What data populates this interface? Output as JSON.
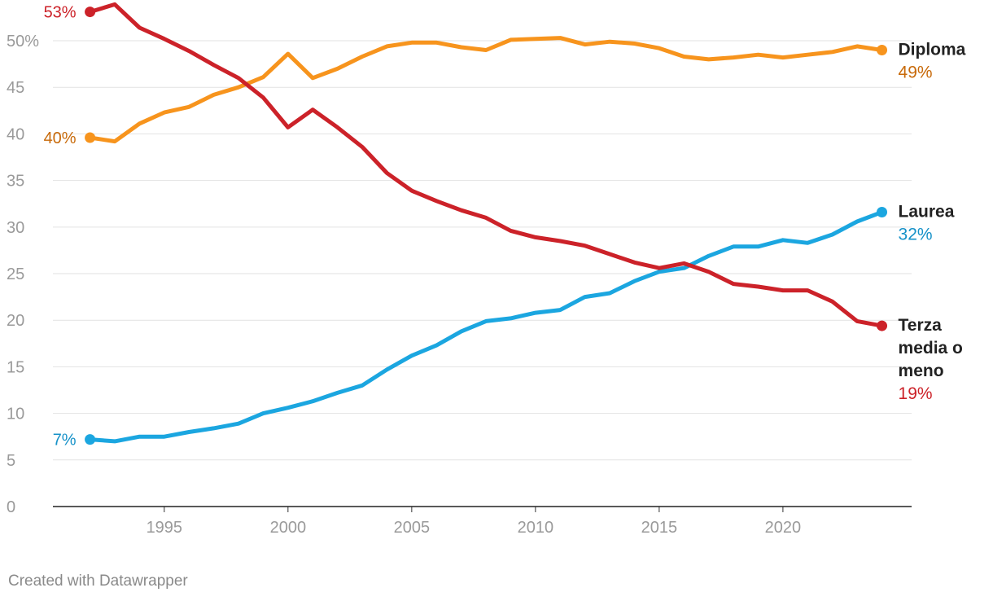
{
  "chart_data": {
    "type": "line",
    "title": "",
    "xlabel": "",
    "ylabel": "",
    "xlim": [
      1990.5,
      2025.2
    ],
    "ylim": [
      0,
      53.5
    ],
    "x_ticks": [
      {
        "value": 1995,
        "label": "1995"
      },
      {
        "value": 2000,
        "label": "2000"
      },
      {
        "value": 2005,
        "label": "2005"
      },
      {
        "value": 2010,
        "label": "2010"
      },
      {
        "value": 2015,
        "label": "2015"
      },
      {
        "value": 2020,
        "label": "2020"
      }
    ],
    "y_ticks": [
      {
        "value": 0,
        "label": "0"
      },
      {
        "value": 5,
        "label": "5"
      },
      {
        "value": 10,
        "label": "10"
      },
      {
        "value": 15,
        "label": "15"
      },
      {
        "value": 20,
        "label": "20"
      },
      {
        "value": 25,
        "label": "25"
      },
      {
        "value": 30,
        "label": "30"
      },
      {
        "value": 35,
        "label": "35"
      },
      {
        "value": 40,
        "label": "40"
      },
      {
        "value": 45,
        "label": "45"
      },
      {
        "value": 50,
        "label": "50%"
      }
    ],
    "x": [
      1992,
      1993,
      1994,
      1995,
      1996,
      1997,
      1998,
      1999,
      2000,
      2001,
      2002,
      2003,
      2004,
      2005,
      2006,
      2007,
      2008,
      2009,
      2010,
      2011,
      2012,
      2013,
      2014,
      2015,
      2016,
      2017,
      2018,
      2019,
      2020,
      2021,
      2022,
      2023,
      2024
    ],
    "series": [
      {
        "name": "Diploma",
        "end_label": "49%",
        "start_label": "40%",
        "color": "#f7941d",
        "label_color": "#c86a0a",
        "values": [
          39.6,
          39.2,
          41.1,
          42.3,
          42.9,
          44.2,
          45.0,
          46.1,
          48.6,
          46.0,
          47.0,
          48.3,
          49.4,
          49.8,
          49.8,
          49.3,
          49.0,
          50.1,
          50.2,
          50.3,
          49.6,
          49.9,
          49.7,
          49.2,
          48.3,
          48.0,
          48.2,
          48.5,
          48.2,
          48.5,
          48.8,
          49.4,
          49.0
        ]
      },
      {
        "name": "Laurea",
        "end_label": "32%",
        "start_label": "7%",
        "color": "#1ba6e0",
        "label_color": "#1591c8",
        "values": [
          7.2,
          7.0,
          7.5,
          7.5,
          8.0,
          8.4,
          8.9,
          10.0,
          10.6,
          11.3,
          12.2,
          13.0,
          14.7,
          16.2,
          17.3,
          18.8,
          19.9,
          20.2,
          20.8,
          21.1,
          22.5,
          22.9,
          24.2,
          25.2,
          25.6,
          26.9,
          27.9,
          27.9,
          28.6,
          28.3,
          29.2,
          30.6,
          31.6
        ]
      },
      {
        "name": "Terza media o meno",
        "name_lines": [
          "Terza",
          "media o",
          "meno"
        ],
        "end_label": "19%",
        "start_label": "53%",
        "color": "#cc2229",
        "label_color": "#cc2229",
        "values": [
          53.1,
          53.9,
          51.4,
          50.2,
          48.9,
          47.4,
          46.0,
          43.9,
          40.7,
          42.6,
          40.7,
          38.6,
          35.8,
          33.9,
          32.8,
          31.8,
          31.0,
          29.6,
          28.9,
          28.5,
          28.0,
          27.1,
          26.2,
          25.6,
          26.1,
          25.2,
          23.9,
          23.6,
          23.2,
          23.2,
          22.0,
          19.9,
          19.4
        ]
      }
    ]
  },
  "footer": {
    "credit": "Created with Datawrapper"
  }
}
